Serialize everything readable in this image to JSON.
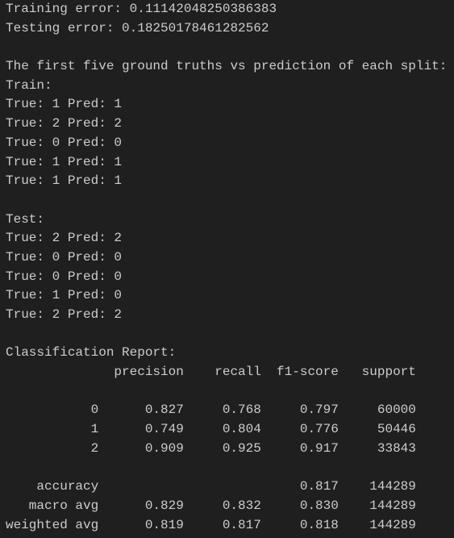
{
  "summary": [
    "Training error: 0.11142048250386383",
    "Testing error: 0.18250178461282562"
  ],
  "comparison": {
    "title": "The first five ground truths vs prediction of each split:",
    "splits": [
      {
        "name": "Train:",
        "lines": [
          "True: 1 Pred: 1",
          "True: 2 Pred: 2",
          "True: 0 Pred: 0",
          "True: 1 Pred: 1",
          "True: 1 Pred: 1"
        ]
      },
      {
        "name": "Test:",
        "lines": [
          "True: 2 Pred: 2",
          "True: 0 Pred: 0",
          "True: 0 Pred: 0",
          "True: 1 Pred: 0",
          "True: 2 Pred: 2"
        ]
      }
    ]
  },
  "report": {
    "title": "Classification Report:",
    "headers": [
      "precision",
      "recall",
      "f1-score",
      "support"
    ],
    "class_rows": [
      {
        "label": "0",
        "precision": "0.827",
        "recall": "0.768",
        "f1-score": "0.797",
        "support": "60000"
      },
      {
        "label": "1",
        "precision": "0.749",
        "recall": "0.804",
        "f1-score": "0.776",
        "support": "50446"
      },
      {
        "label": "2",
        "precision": "0.909",
        "recall": "0.925",
        "f1-score": "0.917",
        "support": "33843"
      }
    ],
    "avg_rows": [
      {
        "label": "accuracy",
        "f1-score": "0.817",
        "support": "144289"
      },
      {
        "label": "macro avg",
        "precision": "0.829",
        "recall": "0.832",
        "f1-score": "0.830",
        "support": "144289"
      },
      {
        "label": "weighted avg",
        "precision": "0.819",
        "recall": "0.817",
        "f1-score": "0.818",
        "support": "144289"
      }
    ]
  }
}
